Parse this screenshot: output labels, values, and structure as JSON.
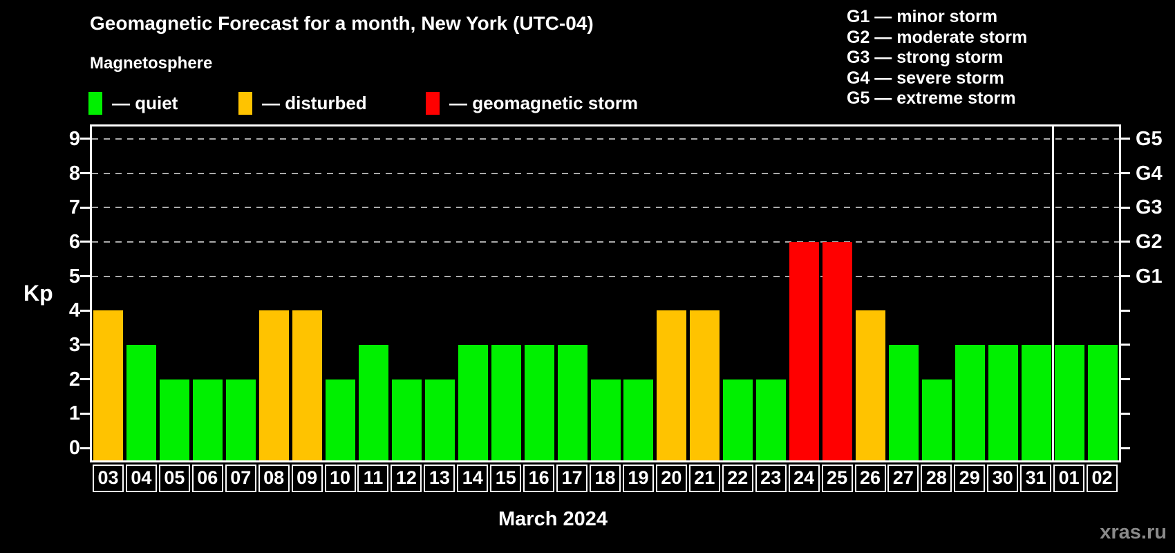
{
  "header": {
    "title": "Geomagnetic Forecast for a month, New York (UTC-04)",
    "subtitle": "Magnetosphere"
  },
  "legend": {
    "items": [
      {
        "key": "quiet",
        "label": "— quiet"
      },
      {
        "key": "disturbed",
        "label": "— disturbed"
      },
      {
        "key": "storm",
        "label": "— geomagnetic storm"
      }
    ]
  },
  "g_legend": {
    "items": [
      "G1 — minor storm",
      "G2 — moderate storm",
      "G3 — strong storm",
      "G4 — severe storm",
      "G5 — extreme storm"
    ]
  },
  "axes": {
    "y_label": "Kp",
    "x_label": "March 2024",
    "y_ticks": [
      0,
      1,
      2,
      3,
      4,
      5,
      6,
      7,
      8,
      9
    ]
  },
  "watermark": "xras.ru",
  "chart_data": {
    "type": "bar",
    "title": "Geomagnetic Forecast for a month, New York (UTC-04)",
    "subtitle": "Magnetosphere",
    "xlabel": "March 2024",
    "ylabel": "Kp",
    "ylim": [
      0,
      9.4
    ],
    "grid": "dashed horizontal at Kp 5-9",
    "legend_position": "top",
    "categories": [
      "03",
      "04",
      "05",
      "06",
      "07",
      "08",
      "09",
      "10",
      "11",
      "12",
      "13",
      "14",
      "15",
      "16",
      "17",
      "18",
      "19",
      "20",
      "21",
      "22",
      "23",
      "24",
      "25",
      "26",
      "27",
      "28",
      "29",
      "30",
      "31",
      "01",
      "02"
    ],
    "values": [
      4,
      3,
      2,
      2,
      2,
      4,
      4,
      2,
      3,
      2,
      2,
      3,
      3,
      3,
      3,
      2,
      2,
      4,
      4,
      2,
      2,
      6,
      6,
      4,
      3,
      2,
      3,
      3,
      3,
      3,
      3
    ],
    "statuses": [
      "disturbed",
      "quiet",
      "quiet",
      "quiet",
      "quiet",
      "disturbed",
      "disturbed",
      "quiet",
      "quiet",
      "quiet",
      "quiet",
      "quiet",
      "quiet",
      "quiet",
      "quiet",
      "quiet",
      "quiet",
      "disturbed",
      "disturbed",
      "quiet",
      "quiet",
      "storm",
      "storm",
      "disturbed",
      "quiet",
      "quiet",
      "quiet",
      "quiet",
      "quiet",
      "quiet",
      "quiet"
    ],
    "colors": {
      "quiet": "#00f000",
      "disturbed": "#ffc300",
      "storm": "#ff0000",
      "gridline": "#aaaaaa",
      "axis": "#ffffff",
      "background": "#000000",
      "watermark": "#8a8a8a"
    },
    "gridlines_at": [
      5,
      6,
      7,
      8,
      9
    ],
    "right_axis_labels": {
      "5": "G1",
      "6": "G2",
      "7": "G3",
      "8": "G4",
      "9": "G5"
    },
    "month_separator_index": 29
  }
}
